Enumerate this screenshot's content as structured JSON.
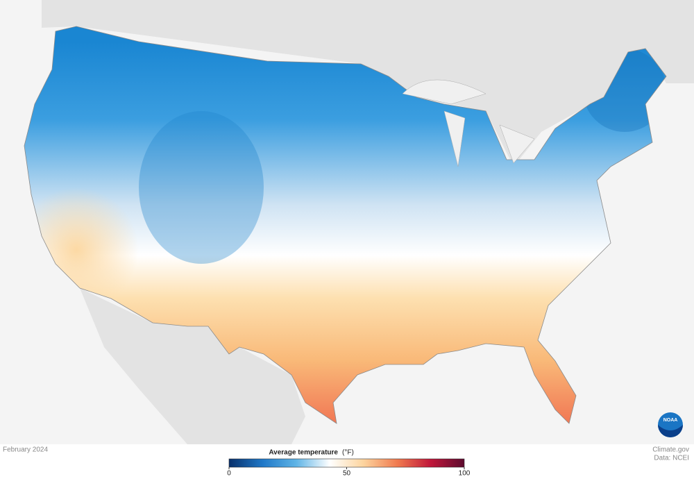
{
  "map": {
    "caption": "February 2024",
    "logo": "NOAA"
  },
  "credits": {
    "source": "Climate.gov",
    "data": "Data: NCEI"
  },
  "legend": {
    "title": "Average temperature",
    "unit": "(°F)",
    "range": [
      0,
      100
    ],
    "ticks": [
      0,
      50,
      100
    ],
    "colors": [
      "#08306b",
      "#1f78c8",
      "#5fb4e6",
      "#ffffff",
      "#fdd49e",
      "#f07b4f",
      "#c0163a",
      "#5c0a2e"
    ]
  }
}
